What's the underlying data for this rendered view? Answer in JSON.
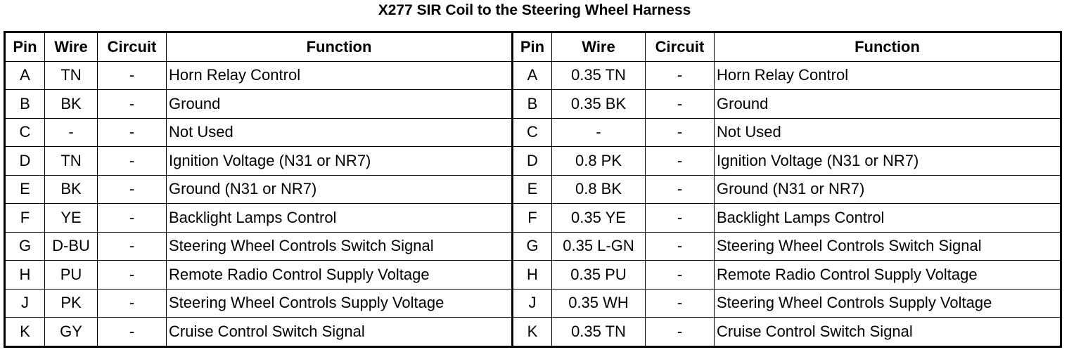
{
  "title": "X277 SIR Coil to the Steering Wheel Harness",
  "table": {
    "header": [
      "Pin",
      "Wire",
      "Circuit",
      "Function",
      "Pin",
      "Wire",
      "Circuit",
      "Function"
    ],
    "rows": [
      [
        "A",
        "TN",
        "-",
        "Horn Relay Control",
        "A",
        "0.35 TN",
        "-",
        "Horn Relay Control"
      ],
      [
        "B",
        "BK",
        "-",
        "Ground",
        "B",
        "0.35 BK",
        "-",
        "Ground"
      ],
      [
        "C",
        "-",
        "-",
        "Not Used",
        "C",
        "-",
        "-",
        "Not Used"
      ],
      [
        "D",
        "TN",
        "-",
        "Ignition Voltage (N31 or NR7)",
        "D",
        "0.8 PK",
        "-",
        "Ignition Voltage (N31 or NR7)"
      ],
      [
        "E",
        "BK",
        "-",
        "Ground (N31 or NR7)",
        "E",
        "0.8 BK",
        "-",
        "Ground (N31 or NR7)"
      ],
      [
        "F",
        "YE",
        "-",
        "Backlight Lamps Control",
        "F",
        "0.35 YE",
        "-",
        "Backlight Lamps Control"
      ],
      [
        "G",
        "D-BU",
        "-",
        "Steering Wheel Controls Switch Signal",
        "G",
        "0.35 L-GN",
        "-",
        "Steering Wheel Controls Switch Signal"
      ],
      [
        "H",
        "PU",
        "-",
        "Remote Radio Control Supply Voltage",
        "H",
        "0.35 PU",
        "-",
        "Remote Radio Control Supply Voltage"
      ],
      [
        "J",
        "PK",
        "-",
        "Steering Wheel Controls Supply Voltage",
        "J",
        "0.35 WH",
        "-",
        "Steering Wheel Controls Supply Voltage"
      ],
      [
        "K",
        "GY",
        "-",
        "Cruise Control Switch Signal",
        "K",
        "0.35 TN",
        "-",
        "Cruise Control Switch Signal"
      ]
    ]
  }
}
